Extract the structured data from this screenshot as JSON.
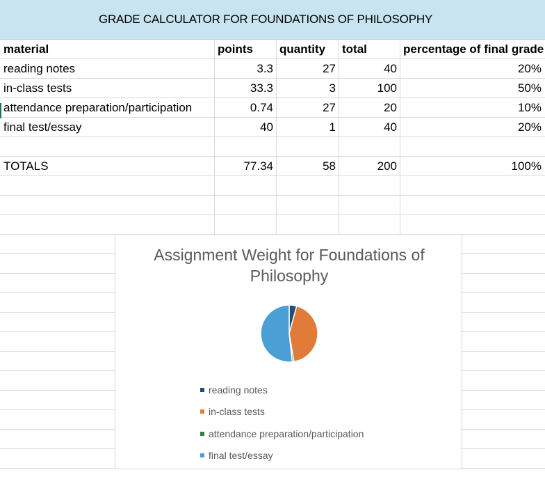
{
  "sheet": {
    "title": "GRADE CALCULATOR FOR FOUNDATIONS OF PHILOSOPHY",
    "headers": [
      "material",
      "points",
      "quantity",
      "total",
      "percentage of final grade"
    ],
    "rows": [
      [
        "reading notes",
        "3.3",
        "27",
        "40",
        "20%"
      ],
      [
        "in-class tests",
        "33.3",
        "3",
        "100",
        "50%"
      ],
      [
        "attendance preparation/participation",
        "0.74",
        "27",
        "20",
        "10%"
      ],
      [
        "final test/essay",
        "40",
        "1",
        "40",
        "20%"
      ],
      [
        "",
        "",
        "",
        "",
        ""
      ],
      [
        "TOTALS",
        "77.34",
        "58",
        "200",
        "100%"
      ]
    ]
  },
  "chart_data": {
    "type": "pie",
    "title": "Assignment Weight for Foundations of Philosophy",
    "categories": [
      "reading notes",
      "in-class tests",
      "attendance preparation/participation",
      "final test/essay"
    ],
    "values": [
      3.3,
      33.3,
      0.74,
      40
    ],
    "colors": [
      "#1f4e79",
      "#e07b39",
      "#3a7d44",
      "#4a9fd4"
    ],
    "legend_position": "bottom"
  }
}
